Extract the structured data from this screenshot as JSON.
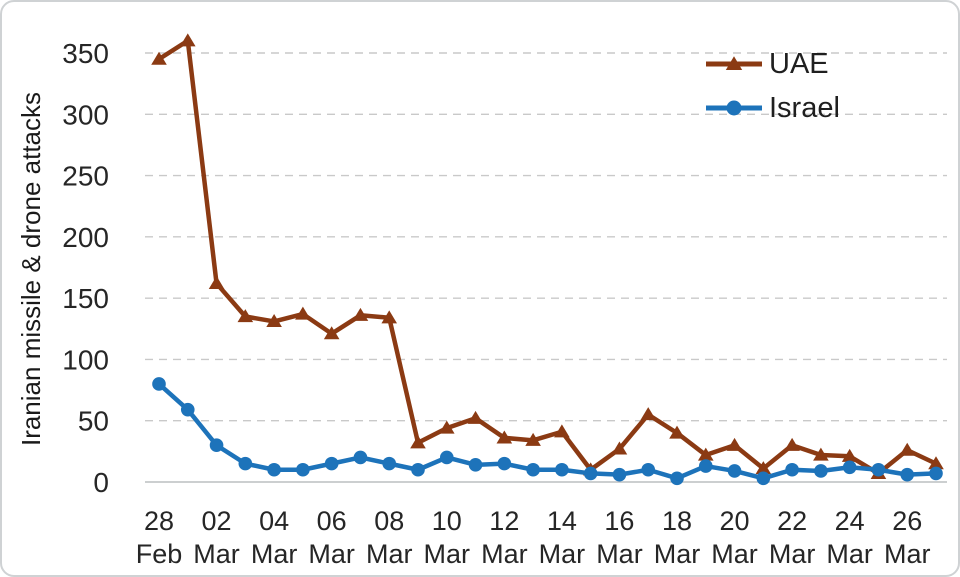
{
  "chart_data": {
    "type": "line",
    "title": "",
    "ylabel": "Iranian missile & drone attacks",
    "xlabel": "",
    "ylim": [
      0,
      350
    ],
    "yticks": [
      0,
      50,
      100,
      150,
      200,
      250,
      300,
      350
    ],
    "grid": "horizontal-dashed",
    "legend_position": "top-right",
    "x": [
      "28 Feb",
      "01 Mar",
      "02 Mar",
      "03 Mar",
      "04 Mar",
      "05 Mar",
      "06 Mar",
      "07 Mar",
      "08 Mar",
      "09 Mar",
      "10 Mar",
      "11 Mar",
      "12 Mar",
      "13 Mar",
      "14 Mar",
      "15 Mar",
      "16 Mar",
      "17 Mar",
      "18 Mar",
      "19 Mar",
      "20 Mar",
      "21 Mar",
      "22 Mar",
      "23 Mar",
      "24 Mar",
      "25 Mar",
      "26 Mar",
      "27 Mar"
    ],
    "x_tick_every": 2,
    "series": [
      {
        "name": "UAE",
        "color": "#8b3a13",
        "marker": "triangle",
        "values": [
          345,
          360,
          162,
          135,
          131,
          137,
          121,
          136,
          134,
          32,
          44,
          52,
          36,
          34,
          41,
          10,
          27,
          55,
          40,
          22,
          30,
          11,
          30,
          22,
          21,
          7,
          26,
          15
        ]
      },
      {
        "name": "Israel",
        "color": "#1d73ba",
        "marker": "circle",
        "values": [
          80,
          59,
          30,
          15,
          10,
          10,
          15,
          20,
          15,
          10,
          20,
          14,
          15,
          10,
          10,
          7,
          6,
          10,
          3,
          13,
          9,
          3,
          10,
          9,
          12,
          10,
          6,
          7
        ]
      }
    ],
    "colors": {
      "gridline": "#c9c9c9",
      "axis_line": "#bcbfc1",
      "tick_text": "#262626"
    }
  }
}
